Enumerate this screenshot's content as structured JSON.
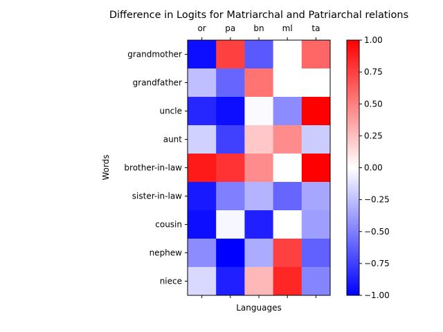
{
  "chart_data": {
    "type": "heatmap",
    "title": "Difference in Logits for Matriarchal and Patriarchal relations",
    "xlabel": "Languages",
    "ylabel": "Words",
    "x_categories": [
      "or",
      "pa",
      "bn",
      "ml",
      "ta"
    ],
    "y_categories": [
      "grandmother",
      "grandfather",
      "uncle",
      "aunt",
      "brother-in-law",
      "sister-in-law",
      "cousin",
      "nephew",
      "niece"
    ],
    "values": [
      [
        -0.95,
        0.75,
        -0.65,
        0.0,
        0.6
      ],
      [
        -0.25,
        -0.6,
        0.55,
        0.0,
        0.0
      ],
      [
        -0.85,
        -0.95,
        -0.02,
        -0.45,
        1.0
      ],
      [
        -0.18,
        -0.75,
        0.22,
        0.45,
        -0.2
      ],
      [
        0.9,
        0.8,
        0.45,
        0.0,
        1.0
      ],
      [
        -0.9,
        -0.5,
        -0.3,
        -0.6,
        -0.35
      ],
      [
        -0.95,
        -0.03,
        -0.88,
        0.0,
        -0.38
      ],
      [
        -0.45,
        -1.0,
        -0.33,
        0.75,
        -0.62
      ],
      [
        -0.15,
        -0.88,
        0.28,
        0.85,
        -0.48
      ]
    ],
    "colormap": "bwr",
    "vmin": -1.0,
    "vmax": 1.0,
    "colorbar_ticks": [
      "1.00",
      "0.75",
      "0.50",
      "0.25",
      "0.00",
      "−0.25",
      "−0.50",
      "−0.75",
      "−1.00"
    ],
    "colorbar_tick_values": [
      1.0,
      0.75,
      0.5,
      0.25,
      0.0,
      -0.25,
      -0.5,
      -0.75,
      -1.0
    ]
  }
}
